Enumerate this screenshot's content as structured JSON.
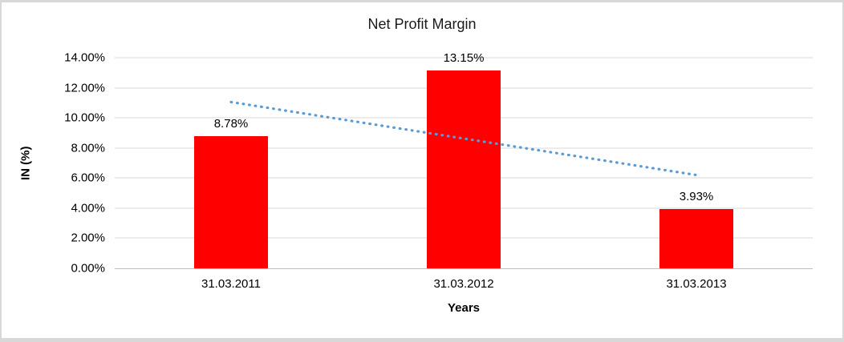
{
  "chart_data": {
    "type": "bar",
    "title": "Net Profit Margin",
    "xlabel": "Years",
    "ylabel": "IN (%)",
    "categories": [
      "31.03.2011",
      "31.03.2012",
      "31.03.2013"
    ],
    "values": [
      8.78,
      13.15,
      3.93
    ],
    "value_labels": [
      "8.78%",
      "13.15%",
      "3.93%"
    ],
    "ylim": [
      0,
      14
    ],
    "y_tick_step": 2,
    "y_tick_labels": [
      "0.00%",
      "2.00%",
      "4.00%",
      "6.00%",
      "8.00%",
      "10.00%",
      "12.00%",
      "14.00%"
    ],
    "grid": true,
    "legend": "none",
    "bar_color": "#ff0000",
    "gridline_color": "#d9d9d9",
    "axis_line_color": "#bfbfbf",
    "trendline": {
      "type": "linear",
      "start_value": 11.05,
      "end_value": 6.2,
      "color": "#5b9bd5",
      "style": "dotted"
    }
  }
}
